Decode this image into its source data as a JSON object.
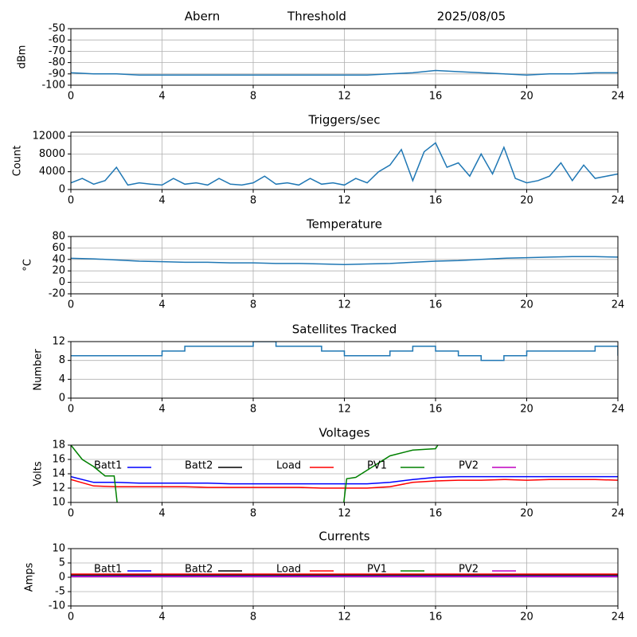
{
  "chart_data": [
    {
      "type": "line",
      "title_parts": [
        "Abern",
        "Threshold",
        "2025/08/05"
      ],
      "ylabel": "dBm",
      "x": [
        0,
        1,
        2,
        3,
        4,
        5,
        6,
        7,
        8,
        9,
        10,
        11,
        12,
        13,
        14,
        15,
        16,
        17,
        18,
        19,
        20,
        21,
        22,
        23,
        24
      ],
      "series": [
        {
          "color": "#1f77b4",
          "values": [
            -89,
            -90,
            -90,
            -91,
            -91,
            -91,
            -91,
            -91,
            -91,
            -91,
            -91,
            -91,
            -91,
            -91,
            -90,
            -89,
            -87,
            -88,
            -89,
            -90,
            -91,
            -90,
            -90,
            -89,
            -89
          ]
        }
      ],
      "xlim": [
        0,
        24
      ],
      "xticks": [
        0,
        4,
        8,
        12,
        16,
        20,
        24
      ],
      "ylim": [
        -100,
        -50
      ],
      "yticks": [
        -100,
        -90,
        -80,
        -70,
        -60,
        -50
      ],
      "grid": true
    },
    {
      "type": "line",
      "title": "Triggers/sec",
      "ylabel": "Count",
      "x": [
        0,
        0.5,
        1,
        1.5,
        2,
        2.5,
        3,
        3.5,
        4,
        4.5,
        5,
        5.5,
        6,
        6.5,
        7,
        7.5,
        8,
        8.5,
        9,
        9.5,
        10,
        10.5,
        11,
        11.5,
        12,
        12.5,
        13,
        13.5,
        14,
        14.5,
        15,
        15.5,
        16,
        16.5,
        17,
        17.5,
        18,
        18.5,
        19,
        19.5,
        20,
        20.5,
        21,
        21.5,
        22,
        22.5,
        23,
        23.5,
        24
      ],
      "series": [
        {
          "color": "#1f77b4",
          "values": [
            1500,
            2500,
            1200,
            2000,
            5000,
            1000,
            1500,
            1200,
            1000,
            2500,
            1200,
            1500,
            1000,
            2500,
            1200,
            1000,
            1500,
            3000,
            1200,
            1500,
            1000,
            2500,
            1200,
            1500,
            1000,
            2500,
            1500,
            4000,
            5500,
            9000,
            2000,
            8500,
            10500,
            5000,
            6000,
            3000,
            8000,
            3500,
            9500,
            2500,
            1500,
            2000,
            3000,
            6000,
            2000,
            5500,
            2500,
            3000,
            3500
          ]
        }
      ],
      "xlim": [
        0,
        24
      ],
      "xticks": [
        0,
        4,
        8,
        12,
        16,
        20,
        24
      ],
      "ylim": [
        0,
        12900
      ],
      "yticks": [
        0,
        4000,
        8000,
        12000
      ],
      "grid": true
    },
    {
      "type": "line",
      "title": "Temperature",
      "ylabel": "°C",
      "x": [
        0,
        1,
        2,
        3,
        4,
        5,
        6,
        7,
        8,
        9,
        10,
        11,
        12,
        13,
        14,
        15,
        16,
        17,
        18,
        19,
        20,
        21,
        22,
        23,
        24
      ],
      "series": [
        {
          "color": "#1f77b4",
          "values": [
            42,
            41,
            39,
            37,
            36,
            35,
            35,
            34,
            34,
            33,
            33,
            32,
            31,
            32,
            33,
            35,
            37,
            38,
            40,
            42,
            43,
            44,
            45,
            45,
            44
          ]
        }
      ],
      "xlim": [
        0,
        24
      ],
      "xticks": [
        0,
        4,
        8,
        12,
        16,
        20,
        24
      ],
      "ylim": [
        -20,
        80
      ],
      "yticks": [
        -20,
        0,
        20,
        40,
        60,
        80
      ],
      "grid": true
    },
    {
      "type": "line",
      "title": "Satellites Tracked",
      "ylabel": "Number",
      "drawstyle": "steps-post",
      "x": [
        0,
        1,
        2,
        3,
        4,
        5,
        6,
        7,
        8,
        9,
        10,
        11,
        12,
        13,
        14,
        15,
        16,
        17,
        18,
        19,
        20,
        21,
        22,
        23,
        24
      ],
      "series": [
        {
          "color": "#1f77b4",
          "values": [
            9,
            9,
            9,
            9,
            10,
            11,
            11,
            11,
            12,
            11,
            11,
            10,
            9,
            9,
            10,
            11,
            10,
            9,
            8,
            9,
            10,
            10,
            10,
            11,
            9
          ]
        }
      ],
      "xlim": [
        0,
        24
      ],
      "xticks": [
        0,
        4,
        8,
        12,
        16,
        20,
        24
      ],
      "ylim": [
        0,
        12
      ],
      "yticks": [
        0,
        4,
        8,
        12
      ],
      "grid": true
    },
    {
      "type": "line",
      "title": "Voltages",
      "ylabel": "Volts",
      "legend": true,
      "x": [
        0,
        1,
        2,
        3,
        4,
        5,
        6,
        7,
        8,
        9,
        10,
        11,
        12,
        13,
        14,
        15,
        16,
        17,
        18,
        19,
        20,
        21,
        22,
        23,
        24
      ],
      "series": [
        {
          "name": "Batt1",
          "color": "#0000ff",
          "values": [
            13.6,
            12.8,
            12.8,
            12.7,
            12.7,
            12.7,
            12.7,
            12.6,
            12.6,
            12.6,
            12.6,
            12.6,
            12.6,
            12.6,
            12.8,
            13.2,
            13.5,
            13.6,
            13.6,
            13.6,
            13.6,
            13.6,
            13.6,
            13.6,
            13.6
          ]
        },
        {
          "name": "Batt2",
          "color": "#000000",
          "values": [
            null,
            null,
            null,
            null,
            null,
            null,
            null,
            null,
            null,
            null,
            null,
            null,
            null,
            null,
            null,
            null,
            null,
            null,
            null,
            null,
            null,
            null,
            null,
            null,
            null
          ]
        },
        {
          "name": "Load",
          "color": "#ff0000",
          "values": [
            13.2,
            12.3,
            12.2,
            12.2,
            12.2,
            12.2,
            12.1,
            12.1,
            12.1,
            12.1,
            12.1,
            12.0,
            12.0,
            12.0,
            12.2,
            12.8,
            13.0,
            13.1,
            13.1,
            13.2,
            13.1,
            13.2,
            13.2,
            13.2,
            13.1
          ]
        },
        {
          "name": "PV1",
          "color": "#008000",
          "x": [
            0,
            0.5,
            1,
            1.5,
            1.9,
            2.1,
            7,
            11.9,
            12.1,
            12.5,
            13,
            14,
            15,
            16,
            16.3
          ],
          "values": [
            18,
            16,
            15,
            13.7,
            13.7,
            8,
            null,
            8,
            13.3,
            13.5,
            14.5,
            16.5,
            17.3,
            17.5,
            19
          ]
        },
        {
          "name": "PV2",
          "color": "#bf00bf",
          "values": [
            null,
            null,
            null,
            null,
            null,
            null,
            null,
            null,
            null,
            null,
            null,
            null,
            null,
            null,
            null,
            null,
            null,
            null,
            null,
            null,
            null,
            null,
            null,
            null,
            null
          ]
        }
      ],
      "xlim": [
        0,
        24
      ],
      "xticks": [
        0,
        4,
        8,
        12,
        16,
        20,
        24
      ],
      "ylim": [
        10,
        18
      ],
      "yticks": [
        10,
        12,
        14,
        16,
        18
      ],
      "grid": true
    },
    {
      "type": "line",
      "title": "Currents",
      "ylabel": "Amps",
      "legend": true,
      "x": [
        0,
        1,
        2,
        3,
        4,
        5,
        6,
        7,
        8,
        9,
        10,
        11,
        12,
        13,
        14,
        15,
        16,
        17,
        18,
        19,
        20,
        21,
        22,
        23,
        24
      ],
      "series": [
        {
          "name": "Batt1",
          "color": "#0000ff",
          "values": [
            0.3,
            0.3,
            0.3,
            0.3,
            0.3,
            0.3,
            0.3,
            0.3,
            0.3,
            0.3,
            0.3,
            0.3,
            0.3,
            0.3,
            0.3,
            0.3,
            0.3,
            0.3,
            0.3,
            0.3,
            0.3,
            0.3,
            0.3,
            0.3,
            0.3
          ]
        },
        {
          "name": "Batt2",
          "color": "#000000",
          "values": [
            0.8,
            0.8,
            0.8,
            0.8,
            0.8,
            0.8,
            0.8,
            0.8,
            0.8,
            0.8,
            0.8,
            0.8,
            0.8,
            0.8,
            0.8,
            0.8,
            0.8,
            0.8,
            0.8,
            0.8,
            0.8,
            0.8,
            0.8,
            0.8,
            0.8
          ]
        },
        {
          "name": "Load",
          "color": "#ff0000",
          "values": [
            1.1,
            1.1,
            1.1,
            1.1,
            1.1,
            1.1,
            1.1,
            1.1,
            1.1,
            1.1,
            1.1,
            1.1,
            1.1,
            1.1,
            1.1,
            1.1,
            1.1,
            1.1,
            1.1,
            1.1,
            1.1,
            1.1,
            1.1,
            1.1,
            1.1
          ]
        },
        {
          "name": "PV1",
          "color": "#008000",
          "values": [
            null,
            null,
            null,
            null,
            null,
            null,
            null,
            null,
            null,
            null,
            null,
            null,
            null,
            null,
            null,
            null,
            null,
            null,
            null,
            null,
            null,
            null,
            null,
            null,
            null
          ]
        },
        {
          "name": "PV2",
          "color": "#bf00bf",
          "values": [
            0.2,
            0.2,
            0.2,
            0.2,
            0.2,
            0.2,
            0.2,
            0.2,
            0.2,
            0.2,
            0.2,
            0.2,
            0.2,
            0.2,
            0.2,
            0.2,
            0.2,
            0.2,
            0.2,
            0.2,
            0.2,
            0.2,
            0.2,
            0.2,
            0.2
          ]
        }
      ],
      "xlim": [
        0,
        24
      ],
      "xticks": [
        0,
        4,
        8,
        12,
        16,
        20,
        24
      ],
      "ylim": [
        -10,
        10
      ],
      "yticks": [
        -10,
        -5,
        0,
        5,
        10
      ],
      "grid": true
    }
  ]
}
